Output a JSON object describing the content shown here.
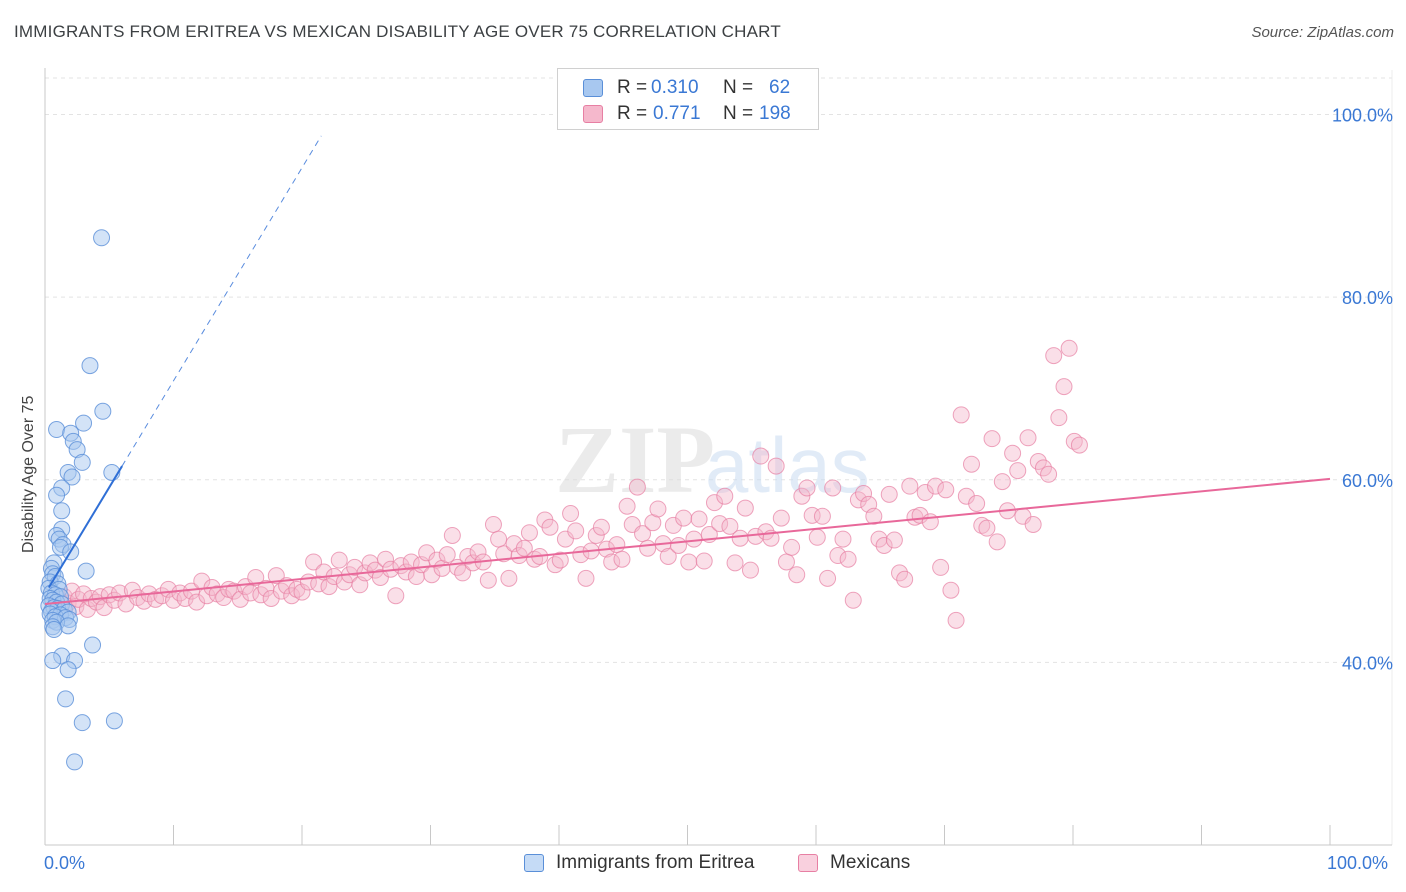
{
  "header": {
    "title": "IMMIGRANTS FROM ERITREA VS MEXICAN DISABILITY AGE OVER 75 CORRELATION CHART",
    "source": "Source: ZipAtlas.com"
  },
  "watermark": {
    "text_zip": "ZIP",
    "text_atlas": "atlas"
  },
  "legend": {
    "rows": [
      {
        "r_label": "R =",
        "r_value": "0.310",
        "n_label": "N =",
        "n_value": "62",
        "color": "#a8c8f0"
      },
      {
        "r_label": "R =",
        "r_value": "0.771",
        "n_label": "N =",
        "n_value": "198",
        "color": "#f5b8cc"
      }
    ]
  },
  "bottom_legend": {
    "series1": "Immigrants from Eritrea",
    "series2": "Mexicans"
  },
  "colors": {
    "blue_fill": "#a8c8f0",
    "blue_stroke": "#5a8fd8",
    "blue_line": "#2f6fd6",
    "pink_fill": "#f5b8cc",
    "pink_stroke": "#e77fa3",
    "pink_line": "#e8689a",
    "tick_label": "#3a78d4",
    "grid": "#e3e3e3"
  },
  "chart_data": {
    "type": "scatter",
    "title": "IMMIGRANTS FROM ERITREA VS MEXICAN DISABILITY AGE OVER 75 CORRELATION CHART",
    "xlabel": "",
    "ylabel": "Disability Age Over 75",
    "xlim": [
      0,
      100
    ],
    "ylim": [
      20,
      104
    ],
    "x_tick_labels": [
      "0.0%",
      "100.0%"
    ],
    "y_ticks": [
      40,
      60,
      80,
      100
    ],
    "y_tick_labels": [
      "40.0%",
      "60.0%",
      "80.0%",
      "100.0%"
    ],
    "grid": true,
    "legend_position": "top-center",
    "series": [
      {
        "name": "Immigrants from Eritrea",
        "R": 0.31,
        "N": 62,
        "trend": {
          "x0": 0.3,
          "y0": 48.2,
          "x1": 6.0,
          "y1": 61.5,
          "dashed_to_x": 21.5
        },
        "points": [
          [
            4.4,
            86.5
          ],
          [
            3.5,
            72.5
          ],
          [
            4.5,
            67.5
          ],
          [
            3.0,
            66.2
          ],
          [
            0.9,
            65.5
          ],
          [
            2.0,
            65.1
          ],
          [
            2.2,
            64.2
          ],
          [
            2.5,
            63.3
          ],
          [
            2.9,
            61.9
          ],
          [
            1.8,
            60.8
          ],
          [
            2.1,
            60.3
          ],
          [
            5.2,
            60.8
          ],
          [
            1.3,
            59.1
          ],
          [
            0.9,
            58.3
          ],
          [
            1.3,
            56.6
          ],
          [
            1.3,
            54.6
          ],
          [
            0.9,
            53.9
          ],
          [
            1.1,
            53.5
          ],
          [
            1.4,
            52.9
          ],
          [
            1.2,
            52.6
          ],
          [
            2.0,
            52.1
          ],
          [
            0.7,
            50.9
          ],
          [
            0.5,
            50.3
          ],
          [
            3.2,
            50.0
          ],
          [
            0.6,
            49.7
          ],
          [
            0.8,
            49.4
          ],
          [
            0.4,
            48.8
          ],
          [
            1.0,
            48.6
          ],
          [
            0.3,
            48.1
          ],
          [
            1.1,
            48.0
          ],
          [
            0.5,
            47.6
          ],
          [
            0.8,
            47.4
          ],
          [
            1.2,
            47.2
          ],
          [
            0.4,
            47.0
          ],
          [
            0.6,
            46.8
          ],
          [
            0.9,
            46.6
          ],
          [
            1.3,
            46.4
          ],
          [
            0.3,
            46.2
          ],
          [
            0.7,
            46.0
          ],
          [
            1.0,
            45.9
          ],
          [
            1.5,
            45.8
          ],
          [
            0.5,
            45.6
          ],
          [
            1.8,
            45.5
          ],
          [
            0.4,
            45.3
          ],
          [
            1.2,
            45.2
          ],
          [
            0.8,
            45.0
          ],
          [
            1.6,
            44.9
          ],
          [
            0.6,
            44.6
          ],
          [
            1.9,
            44.7
          ],
          [
            0.9,
            44.4
          ],
          [
            0.6,
            43.9
          ],
          [
            1.8,
            44.0
          ],
          [
            0.7,
            43.6
          ],
          [
            3.7,
            41.9
          ],
          [
            1.3,
            40.7
          ],
          [
            0.6,
            40.2
          ],
          [
            2.3,
            40.2
          ],
          [
            1.8,
            39.2
          ],
          [
            1.6,
            36.0
          ],
          [
            2.9,
            33.4
          ],
          [
            5.4,
            33.6
          ],
          [
            2.3,
            29.1
          ]
        ]
      },
      {
        "name": "Mexicans",
        "R": 0.771,
        "N": 198,
        "trend": {
          "x0": 0.0,
          "y0": 46.4,
          "x1": 100.0,
          "y1": 60.1
        },
        "points": [
          [
            1.5,
            47.2
          ],
          [
            1.8,
            46.5
          ],
          [
            2.1,
            47.8
          ],
          [
            2.4,
            46.1
          ],
          [
            2.6,
            46.9
          ],
          [
            3.0,
            47.5
          ],
          [
            3.3,
            45.8
          ],
          [
            3.6,
            47.0
          ],
          [
            4.0,
            46.6
          ],
          [
            4.3,
            47.2
          ],
          [
            4.6,
            46.0
          ],
          [
            5.0,
            47.4
          ],
          [
            5.4,
            46.8
          ],
          [
            5.8,
            47.6
          ],
          [
            6.3,
            46.4
          ],
          [
            6.8,
            47.9
          ],
          [
            7.2,
            47.1
          ],
          [
            7.7,
            46.7
          ],
          [
            8.1,
            47.5
          ],
          [
            8.6,
            46.9
          ],
          [
            9.1,
            47.3
          ],
          [
            9.6,
            48.0
          ],
          [
            10.0,
            46.8
          ],
          [
            10.5,
            47.6
          ],
          [
            10.9,
            47.0
          ],
          [
            11.4,
            47.8
          ],
          [
            11.8,
            46.6
          ],
          [
            12.2,
            48.9
          ],
          [
            12.6,
            47.3
          ],
          [
            13.0,
            48.2
          ],
          [
            13.4,
            47.5
          ],
          [
            13.9,
            47.1
          ],
          [
            14.3,
            48.0
          ],
          [
            14.7,
            47.8
          ],
          [
            15.2,
            46.9
          ],
          [
            15.6,
            48.3
          ],
          [
            16.0,
            47.6
          ],
          [
            16.4,
            49.3
          ],
          [
            16.8,
            47.4
          ],
          [
            17.2,
            48.1
          ],
          [
            17.6,
            47.0
          ],
          [
            18.0,
            49.5
          ],
          [
            18.4,
            47.8
          ],
          [
            18.8,
            48.4
          ],
          [
            19.2,
            47.3
          ],
          [
            19.6,
            48.0
          ],
          [
            20.0,
            47.7
          ],
          [
            20.5,
            48.8
          ],
          [
            20.9,
            51.0
          ],
          [
            21.3,
            48.6
          ],
          [
            21.7,
            49.9
          ],
          [
            22.1,
            48.3
          ],
          [
            22.5,
            49.4
          ],
          [
            22.9,
            51.2
          ],
          [
            23.3,
            48.8
          ],
          [
            23.7,
            49.6
          ],
          [
            24.1,
            50.4
          ],
          [
            24.5,
            48.5
          ],
          [
            24.9,
            49.8
          ],
          [
            25.3,
            50.9
          ],
          [
            25.7,
            50.1
          ],
          [
            26.1,
            49.3
          ],
          [
            26.5,
            51.3
          ],
          [
            26.9,
            50.2
          ],
          [
            27.3,
            47.3
          ],
          [
            27.7,
            50.6
          ],
          [
            28.1,
            49.9
          ],
          [
            28.5,
            51.0
          ],
          [
            28.9,
            49.4
          ],
          [
            29.3,
            50.7
          ],
          [
            29.7,
            52.0
          ],
          [
            30.1,
            49.6
          ],
          [
            30.5,
            51.2
          ],
          [
            30.9,
            50.3
          ],
          [
            31.3,
            51.8
          ],
          [
            31.7,
            53.9
          ],
          [
            32.1,
            50.4
          ],
          [
            32.5,
            49.8
          ],
          [
            32.9,
            51.6
          ],
          [
            33.3,
            50.9
          ],
          [
            33.7,
            52.1
          ],
          [
            34.1,
            51.0
          ],
          [
            34.5,
            49.0
          ],
          [
            34.9,
            55.1
          ],
          [
            35.3,
            53.5
          ],
          [
            35.7,
            51.9
          ],
          [
            36.1,
            49.2
          ],
          [
            36.5,
            53.0
          ],
          [
            36.9,
            51.7
          ],
          [
            37.3,
            52.5
          ],
          [
            37.7,
            54.2
          ],
          [
            38.1,
            51.3
          ],
          [
            38.5,
            51.6
          ],
          [
            38.9,
            55.6
          ],
          [
            39.3,
            54.8
          ],
          [
            39.7,
            50.7
          ],
          [
            40.1,
            51.2
          ],
          [
            40.5,
            53.5
          ],
          [
            40.9,
            56.3
          ],
          [
            41.3,
            54.4
          ],
          [
            41.7,
            51.8
          ],
          [
            42.1,
            49.2
          ],
          [
            42.5,
            52.2
          ],
          [
            42.9,
            53.9
          ],
          [
            43.3,
            54.8
          ],
          [
            43.7,
            52.4
          ],
          [
            44.1,
            51.0
          ],
          [
            44.5,
            52.9
          ],
          [
            44.9,
            51.3
          ],
          [
            45.3,
            57.1
          ],
          [
            45.7,
            55.1
          ],
          [
            46.1,
            59.2
          ],
          [
            46.5,
            54.1
          ],
          [
            46.9,
            52.5
          ],
          [
            47.3,
            55.3
          ],
          [
            47.7,
            56.8
          ],
          [
            48.1,
            53.0
          ],
          [
            48.5,
            51.6
          ],
          [
            48.9,
            55.0
          ],
          [
            49.3,
            52.8
          ],
          [
            49.7,
            55.8
          ],
          [
            50.1,
            51.0
          ],
          [
            50.5,
            53.5
          ],
          [
            50.9,
            55.7
          ],
          [
            51.3,
            51.1
          ],
          [
            51.7,
            54.0
          ],
          [
            52.1,
            57.5
          ],
          [
            52.5,
            55.2
          ],
          [
            52.9,
            58.2
          ],
          [
            53.3,
            54.9
          ],
          [
            53.7,
            50.9
          ],
          [
            54.1,
            53.6
          ],
          [
            54.5,
            56.9
          ],
          [
            54.9,
            50.1
          ],
          [
            55.3,
            53.8
          ],
          [
            55.7,
            62.6
          ],
          [
            56.1,
            54.3
          ],
          [
            56.5,
            53.6
          ],
          [
            56.9,
            61.5
          ],
          [
            57.3,
            55.8
          ],
          [
            57.7,
            51.0
          ],
          [
            58.1,
            52.6
          ],
          [
            58.5,
            49.6
          ],
          [
            58.9,
            58.2
          ],
          [
            59.3,
            59.1
          ],
          [
            59.7,
            56.1
          ],
          [
            60.1,
            53.7
          ],
          [
            60.5,
            56.0
          ],
          [
            60.9,
            49.2
          ],
          [
            61.3,
            59.1
          ],
          [
            61.7,
            51.7
          ],
          [
            62.1,
            53.5
          ],
          [
            62.5,
            51.3
          ],
          [
            62.9,
            46.8
          ],
          [
            63.3,
            57.8
          ],
          [
            63.7,
            58.5
          ],
          [
            64.1,
            57.3
          ],
          [
            64.5,
            56.0
          ],
          [
            64.9,
            53.5
          ],
          [
            65.3,
            52.8
          ],
          [
            65.7,
            58.4
          ],
          [
            66.1,
            53.4
          ],
          [
            66.5,
            49.8
          ],
          [
            66.9,
            49.1
          ],
          [
            67.3,
            59.3
          ],
          [
            67.7,
            55.9
          ],
          [
            68.1,
            56.1
          ],
          [
            68.5,
            58.6
          ],
          [
            68.9,
            55.4
          ],
          [
            69.3,
            59.3
          ],
          [
            69.7,
            50.4
          ],
          [
            70.1,
            58.9
          ],
          [
            70.5,
            47.9
          ],
          [
            70.9,
            44.6
          ],
          [
            71.3,
            67.1
          ],
          [
            71.7,
            58.2
          ],
          [
            72.1,
            61.7
          ],
          [
            72.5,
            57.4
          ],
          [
            72.9,
            55.0
          ],
          [
            73.3,
            54.7
          ],
          [
            73.7,
            64.5
          ],
          [
            74.1,
            53.2
          ],
          [
            74.5,
            59.8
          ],
          [
            74.9,
            56.6
          ],
          [
            75.3,
            62.9
          ],
          [
            75.7,
            61.0
          ],
          [
            76.1,
            56.0
          ],
          [
            76.5,
            64.6
          ],
          [
            76.9,
            55.1
          ],
          [
            77.3,
            62.0
          ],
          [
            77.7,
            61.3
          ],
          [
            78.1,
            60.6
          ],
          [
            78.5,
            73.6
          ],
          [
            78.9,
            66.8
          ],
          [
            79.3,
            70.2
          ],
          [
            79.7,
            74.4
          ],
          [
            80.1,
            64.2
          ],
          [
            80.5,
            63.8
          ]
        ]
      }
    ]
  },
  "axis": {
    "y_label": "Disability Age Over 75",
    "x_min_label": "0.0%",
    "x_max_label": "100.0%"
  }
}
